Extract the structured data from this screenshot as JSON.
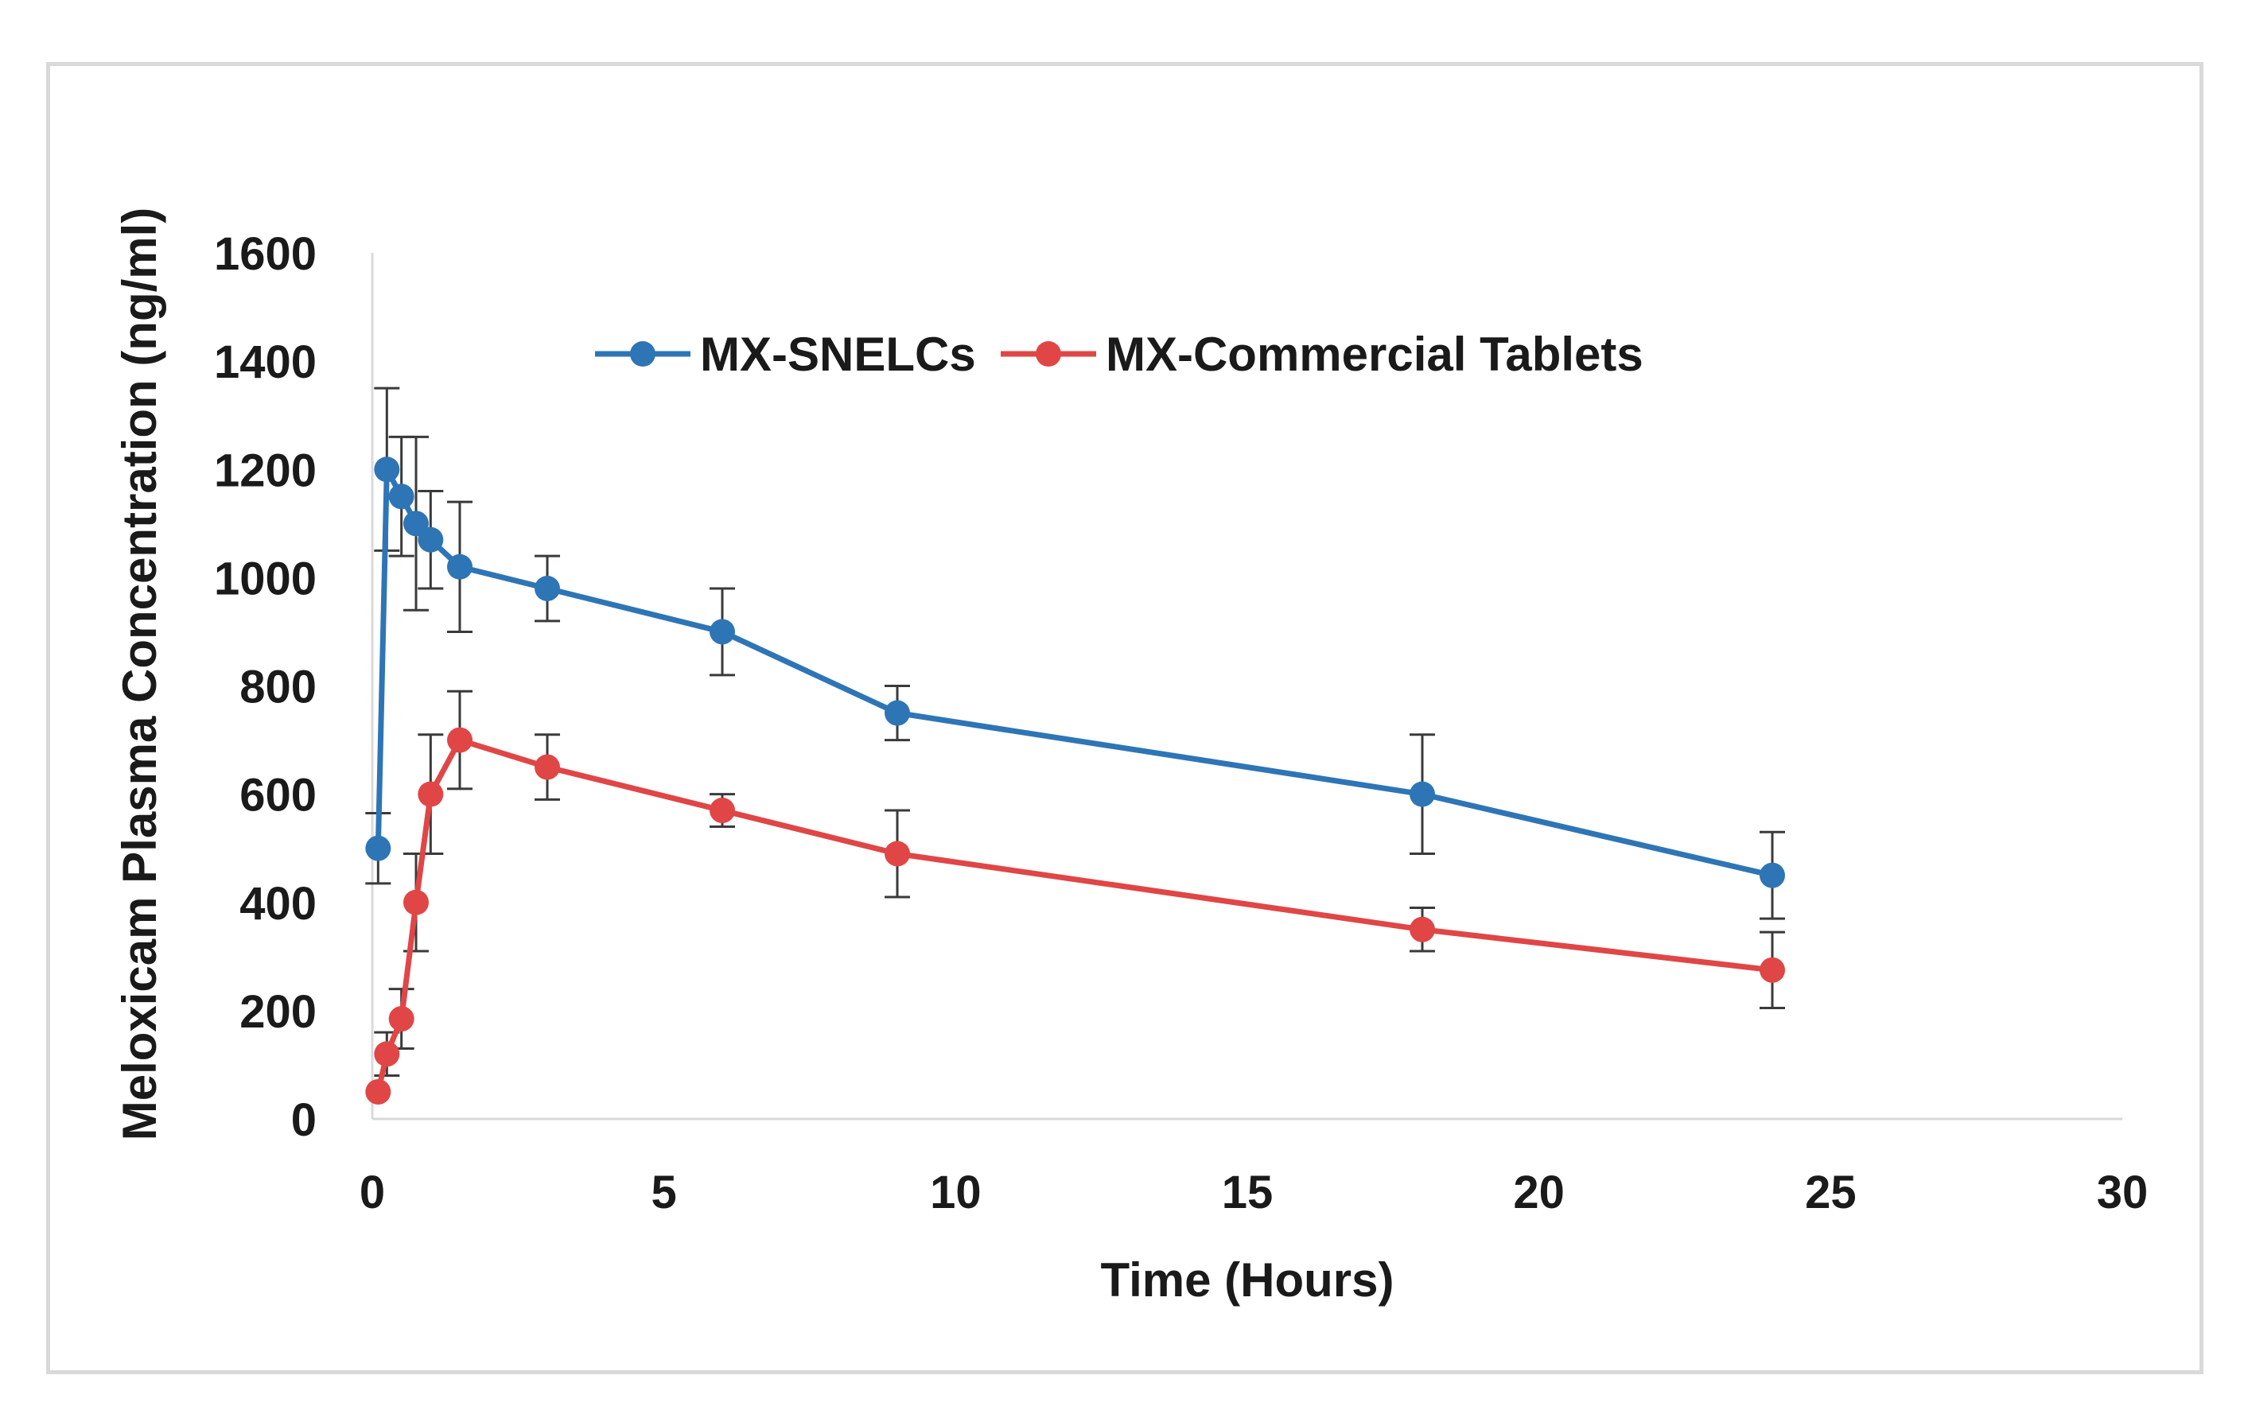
{
  "chart_data": {
    "type": "line",
    "title": "",
    "xlabel": "Time (Hours)",
    "ylabel": "Meloxicam Plasma Concentration (ng/ml)",
    "xlim": [
      0,
      30
    ],
    "ylim": [
      0,
      1600
    ],
    "xticks": [
      0,
      5,
      10,
      15,
      20,
      25,
      30
    ],
    "yticks": [
      0,
      200,
      400,
      600,
      800,
      1000,
      1200,
      1400,
      1600
    ],
    "grid": false,
    "legend_position": "top-center",
    "series": [
      {
        "name": "MX-SNELCs",
        "color": "#2e75b6",
        "x": [
          0.1,
          0.25,
          0.5,
          0.75,
          1,
          1.5,
          3,
          6,
          9,
          18,
          24
        ],
        "y": [
          500,
          1200,
          1150,
          1100,
          1070,
          1020,
          980,
          900,
          750,
          600,
          450
        ],
        "error": [
          65,
          150,
          110,
          160,
          90,
          120,
          60,
          80,
          50,
          110,
          80
        ]
      },
      {
        "name": "MX-Commercial Tablets",
        "color": "#e04646",
        "x": [
          0.1,
          0.25,
          0.5,
          0.75,
          1,
          1.5,
          3,
          6,
          9,
          18,
          24
        ],
        "y": [
          50,
          120,
          185,
          400,
          600,
          700,
          650,
          570,
          490,
          350,
          275
        ],
        "error": [
          0,
          40,
          55,
          90,
          110,
          90,
          60,
          30,
          80,
          40,
          70
        ]
      }
    ]
  }
}
